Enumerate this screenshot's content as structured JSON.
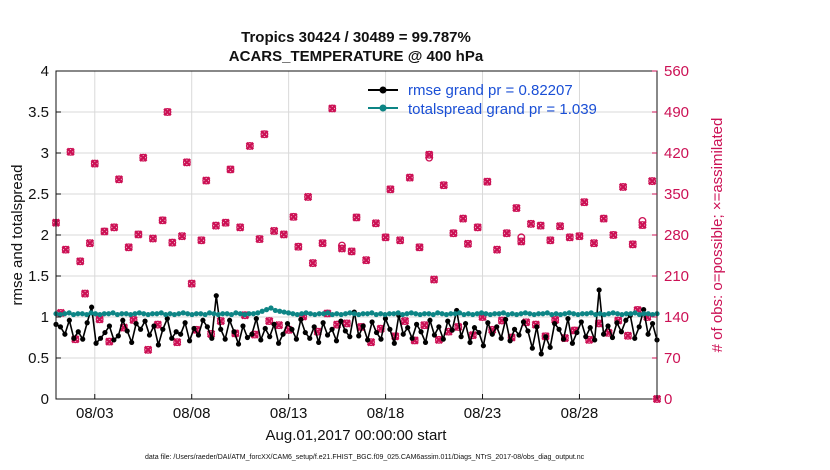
{
  "chart_data": {
    "type": "line",
    "title_line1": "Tropics 30424 / 30489 = 99.787%",
    "title_line2": "ACARS_TEMPERATURE @ 400 hPa",
    "xlabel": "Aug.01,2017 00:00:00 start",
    "ylabel_left": "rmse and totalspread",
    "ylabel_right": "# of obs: o=possible; ×=assimilated",
    "ylim_left": [
      0,
      4
    ],
    "ylim_right": [
      0,
      560
    ],
    "xlim": [
      0,
      62
    ],
    "left_ticks": [
      "0",
      "0.5",
      "1",
      "1.5",
      "2",
      "2.5",
      "3",
      "3.5",
      "4"
    ],
    "right_ticks": [
      "0",
      "70",
      "140",
      "210",
      "280",
      "350",
      "420",
      "490",
      "560"
    ],
    "x_ticks": [
      {
        "x": 4,
        "label": "08/03"
      },
      {
        "x": 14,
        "label": "08/08"
      },
      {
        "x": 24,
        "label": "08/13"
      },
      {
        "x": 34,
        "label": "08/18"
      },
      {
        "x": 44,
        "label": "08/23"
      },
      {
        "x": 54,
        "label": "08/28"
      }
    ],
    "series": [
      {
        "name": "rmse grand pr = 0.82207",
        "axis": "left",
        "color": "#000000",
        "values": [
          0.91,
          0.88,
          0.79,
          0.96,
          0.74,
          0.82,
          0.73,
          0.93,
          1.12,
          0.68,
          0.74,
          0.81,
          0.89,
          0.72,
          0.77,
          0.96,
          0.83,
          0.69,
          0.92,
          0.85,
          0.95,
          0.78,
          0.89,
          0.66,
          0.85,
          0.98,
          0.74,
          0.82,
          0.79,
          0.93,
          0.71,
          0.86,
          0.78,
          0.96,
          0.88,
          0.74,
          1.26,
          0.85,
          0.73,
          0.96,
          0.82,
          0.67,
          0.89,
          0.75,
          0.79,
          0.98,
          0.72,
          0.86,
          0.76,
          0.91,
          0.68,
          0.79,
          0.92,
          0.85,
          0.73,
          0.97,
          0.81,
          0.74,
          0.88,
          0.69,
          0.93,
          0.78,
          0.85,
          0.71,
          0.95,
          0.83,
          0.76,
          1.06,
          0.77,
          0.89,
          0.72,
          0.94,
          0.81,
          0.73,
          0.98,
          0.85,
          0.68,
          1.02,
          0.79,
          0.87,
          0.74,
          0.91,
          0.82,
          0.69,
          0.96,
          0.78,
          0.88,
          0.73,
          0.95,
          0.84,
          1.08,
          0.76,
          0.92,
          0.69,
          0.87,
          0.81,
          0.65,
          0.93,
          0.79,
          0.88,
          0.74,
          0.97,
          0.71,
          0.85,
          0.78,
          0.94,
          0.83,
          0.62,
          0.88,
          0.55,
          0.76,
          0.63,
          0.92,
          0.85,
          0.73,
          0.98,
          0.68,
          0.81,
          0.94,
          0.76,
          0.87,
          0.72,
          1.33,
          0.79,
          0.89,
          0.75,
          0.93,
          0.82,
          0.96,
          1.02,
          0.74,
          0.88,
          1.09,
          0.79,
          0.92,
          0.72
        ]
      },
      {
        "name": "totalspread grand pr = 1.039",
        "axis": "left",
        "color": "#0d8585",
        "values": [
          1.04,
          1.03,
          1.04,
          1.05,
          1.03,
          1.04,
          1.04,
          1.03,
          1.05,
          1.04,
          1.03,
          1.04,
          1.04,
          1.05,
          1.03,
          1.04,
          1.04,
          1.03,
          1.04,
          1.05,
          1.04,
          1.03,
          1.04,
          1.04,
          1.05,
          1.03,
          1.04,
          1.03,
          1.04,
          1.05,
          1.04,
          1.03,
          1.04,
          1.04,
          1.03,
          1.05,
          1.04,
          1.03,
          1.04,
          1.04,
          1.03,
          1.05,
          1.04,
          1.03,
          1.04,
          1.04,
          1.05,
          1.07,
          1.09,
          1.11,
          1.08,
          1.07,
          1.06,
          1.05,
          1.04,
          1.03,
          1.04,
          1.05,
          1.04,
          1.03,
          1.04,
          1.04,
          1.05,
          1.03,
          1.04,
          1.03,
          1.04,
          1.05,
          1.04,
          1.03,
          1.04,
          1.04,
          1.05,
          1.03,
          1.04,
          1.03,
          1.04,
          1.04,
          1.05,
          1.03,
          1.04,
          1.05,
          1.04,
          1.03,
          1.04,
          1.04,
          1.03,
          1.05,
          1.04,
          1.03,
          1.04,
          1.04,
          1.05,
          1.03,
          1.04,
          1.03,
          1.04,
          1.05,
          1.04,
          1.03,
          1.04,
          1.04,
          1.05,
          1.03,
          1.04,
          1.03,
          1.04,
          1.05,
          1.04,
          1.03,
          1.04,
          1.04,
          1.05,
          1.03,
          1.04,
          1.03,
          1.04,
          1.05,
          1.04,
          1.03,
          1.04,
          1.04,
          1.05,
          1.03,
          1.04,
          1.03,
          1.04,
          1.05,
          1.04,
          1.03,
          1.04,
          1.04,
          1.05,
          1.03,
          1.04,
          1.04,
          1.03,
          1.04
        ]
      }
    ],
    "obs_points": [
      {
        "x": 0.0,
        "n": 301
      },
      {
        "x": 0.5,
        "n": 147
      },
      {
        "x": 1.0,
        "n": 255
      },
      {
        "x": 1.5,
        "n": 422
      },
      {
        "x": 2.0,
        "n": 102
      },
      {
        "x": 2.5,
        "n": 235
      },
      {
        "x": 3.0,
        "n": 180
      },
      {
        "x": 3.5,
        "n": 266
      },
      {
        "x": 4.0,
        "n": 402
      },
      {
        "x": 4.5,
        "n": 136
      },
      {
        "x": 5.0,
        "n": 286
      },
      {
        "x": 5.5,
        "n": 98
      },
      {
        "x": 6.0,
        "n": 293
      },
      {
        "x": 6.5,
        "n": 375
      },
      {
        "x": 7.0,
        "n": 122
      },
      {
        "x": 7.5,
        "n": 259
      },
      {
        "x": 8.0,
        "n": 135
      },
      {
        "x": 8.5,
        "n": 281
      },
      {
        "x": 9.0,
        "n": 412
      },
      {
        "x": 9.5,
        "n": 84
      },
      {
        "x": 10.0,
        "n": 274
      },
      {
        "x": 10.5,
        "n": 127
      },
      {
        "x": 11.0,
        "n": 305
      },
      {
        "x": 11.5,
        "n": 490
      },
      {
        "x": 12.0,
        "n": 267
      },
      {
        "x": 12.5,
        "n": 97
      },
      {
        "x": 13.0,
        "n": 278
      },
      {
        "x": 13.5,
        "n": 404
      },
      {
        "x": 14.0,
        "n": 197
      },
      {
        "x": 14.5,
        "n": 118
      },
      {
        "x": 15.0,
        "n": 271
      },
      {
        "x": 15.5,
        "n": 373
      },
      {
        "x": 16.0,
        "n": 111
      },
      {
        "x": 16.5,
        "n": 296
      },
      {
        "x": 17.0,
        "n": 133
      },
      {
        "x": 17.5,
        "n": 301
      },
      {
        "x": 18.0,
        "n": 392
      },
      {
        "x": 18.5,
        "n": 112
      },
      {
        "x": 19.0,
        "n": 293
      },
      {
        "x": 19.5,
        "n": 143
      },
      {
        "x": 20.0,
        "n": 432
      },
      {
        "x": 20.5,
        "n": 110
      },
      {
        "x": 21.0,
        "n": 273
      },
      {
        "x": 21.5,
        "n": 452
      },
      {
        "x": 22.0,
        "n": 133
      },
      {
        "x": 22.5,
        "n": 287
      },
      {
        "x": 23.0,
        "n": 126
      },
      {
        "x": 23.5,
        "n": 281
      },
      {
        "x": 24.0,
        "n": 118
      },
      {
        "x": 24.5,
        "n": 311
      },
      {
        "x": 25.0,
        "n": 260
      },
      {
        "x": 25.5,
        "n": 141
      },
      {
        "x": 26.0,
        "n": 345
      },
      {
        "x": 26.5,
        "n": 232
      },
      {
        "x": 27.0,
        "n": 115
      },
      {
        "x": 27.5,
        "n": 266
      },
      {
        "x": 28.0,
        "n": 146
      },
      {
        "x": 28.5,
        "n": 496
      },
      {
        "x": 29.0,
        "n": 127
      },
      {
        "x": 29.5,
        "n": 257
      },
      {
        "x": 30.0,
        "n": 129
      },
      {
        "x": 30.5,
        "n": 252
      },
      {
        "x": 31.0,
        "n": 310
      },
      {
        "x": 31.5,
        "n": 123
      },
      {
        "x": 32.0,
        "n": 237
      },
      {
        "x": 32.5,
        "n": 97
      },
      {
        "x": 33.0,
        "n": 300
      },
      {
        "x": 33.5,
        "n": 120
      },
      {
        "x": 34.0,
        "n": 276
      },
      {
        "x": 34.5,
        "n": 358
      },
      {
        "x": 35.0,
        "n": 107
      },
      {
        "x": 35.5,
        "n": 271
      },
      {
        "x": 36.0,
        "n": 133
      },
      {
        "x": 36.5,
        "n": 378
      },
      {
        "x": 37.0,
        "n": 100
      },
      {
        "x": 37.5,
        "n": 259
      },
      {
        "x": 38.0,
        "n": 126
      },
      {
        "x": 38.5,
        "n": 417
      },
      {
        "x": 39.0,
        "n": 204
      },
      {
        "x": 39.5,
        "n": 101
      },
      {
        "x": 40.0,
        "n": 365
      },
      {
        "x": 40.5,
        "n": 115
      },
      {
        "x": 41.0,
        "n": 283
      },
      {
        "x": 41.5,
        "n": 123
      },
      {
        "x": 42.0,
        "n": 308
      },
      {
        "x": 42.5,
        "n": 265
      },
      {
        "x": 43.0,
        "n": 109
      },
      {
        "x": 43.5,
        "n": 293
      },
      {
        "x": 44.0,
        "n": 140
      },
      {
        "x": 44.5,
        "n": 371
      },
      {
        "x": 45.0,
        "n": 118
      },
      {
        "x": 45.5,
        "n": 255
      },
      {
        "x": 46.0,
        "n": 134
      },
      {
        "x": 46.5,
        "n": 283
      },
      {
        "x": 47.0,
        "n": 105
      },
      {
        "x": 47.5,
        "n": 326
      },
      {
        "x": 48.0,
        "n": 269
      },
      {
        "x": 48.5,
        "n": 131
      },
      {
        "x": 49.0,
        "n": 299
      },
      {
        "x": 49.5,
        "n": 127
      },
      {
        "x": 50.0,
        "n": 296
      },
      {
        "x": 50.5,
        "n": 107
      },
      {
        "x": 51.0,
        "n": 271
      },
      {
        "x": 51.5,
        "n": 135
      },
      {
        "x": 52.0,
        "n": 295
      },
      {
        "x": 52.5,
        "n": 104
      },
      {
        "x": 53.0,
        "n": 276
      },
      {
        "x": 53.5,
        "n": 117
      },
      {
        "x": 54.0,
        "n": 278
      },
      {
        "x": 54.5,
        "n": 336
      },
      {
        "x": 55.0,
        "n": 101
      },
      {
        "x": 55.5,
        "n": 266
      },
      {
        "x": 56.0,
        "n": 129
      },
      {
        "x": 56.5,
        "n": 308
      },
      {
        "x": 57.0,
        "n": 113
      },
      {
        "x": 57.5,
        "n": 280
      },
      {
        "x": 58.0,
        "n": 134
      },
      {
        "x": 58.5,
        "n": 362
      },
      {
        "x": 59.0,
        "n": 108
      },
      {
        "x": 59.5,
        "n": 264
      },
      {
        "x": 60.0,
        "n": 152
      },
      {
        "x": 60.5,
        "n": 297
      },
      {
        "x": 61.0,
        "n": 140
      },
      {
        "x": 61.5,
        "n": 372
      },
      {
        "x": 62.0,
        "n": 0
      }
    ],
    "obs_possible_extra": [
      {
        "x": 38.5,
        "n": 412
      },
      {
        "x": 60.5,
        "n": 304
      },
      {
        "x": 48.0,
        "n": 276
      },
      {
        "x": 29.5,
        "n": 262
      }
    ],
    "grid": true,
    "legend_position": "top-right"
  },
  "footer": "data file: /Users/raeder/DAI/ATM_forcXX/CAM6_setup/f.e21.FHIST_BGC.f09_025.CAM6assim.011/Diags_NTrS_2017-08/obs_diag_output.nc",
  "colors": {
    "obs": "#cc1155",
    "axis_right": "#cc1155",
    "axis_left": "#111111",
    "legend_text": "#1a4fd6",
    "grid": "#d9d9d9"
  }
}
